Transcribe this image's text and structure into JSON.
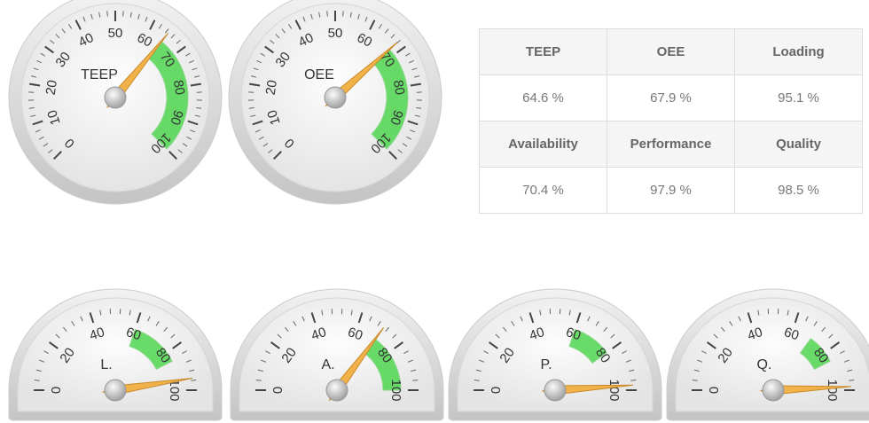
{
  "chart_data": [
    {
      "type": "gauge",
      "style": "round",
      "label": "TEEP",
      "value": 64.6,
      "lim": [
        0,
        100
      ],
      "ticks": [
        0,
        10,
        20,
        30,
        40,
        50,
        60,
        70,
        80,
        90,
        100
      ],
      "band": [
        65,
        100
      ],
      "band_color": "#3ad13a",
      "needle_color": "#f2b24a"
    },
    {
      "type": "gauge",
      "style": "round",
      "label": "OEE",
      "value": 67.9,
      "lim": [
        0,
        100
      ],
      "ticks": [
        0,
        10,
        20,
        30,
        40,
        50,
        60,
        70,
        80,
        90,
        100
      ],
      "band": [
        68,
        100
      ],
      "band_color": "#3ad13a",
      "needle_color": "#f2b24a"
    },
    {
      "type": "gauge",
      "style": "half",
      "label": "L.",
      "value": 95.1,
      "lim": [
        0,
        100
      ],
      "ticks": [
        0,
        20,
        40,
        60,
        80,
        100
      ],
      "band": [
        60,
        85
      ],
      "band_color": "#3ad13a",
      "needle_color": "#f2b24a"
    },
    {
      "type": "gauge",
      "style": "half",
      "label": "A.",
      "value": 70.4,
      "lim": [
        0,
        100
      ],
      "ticks": [
        0,
        20,
        40,
        60,
        80,
        100
      ],
      "band": [
        70,
        100
      ],
      "band_color": "#3ad13a",
      "needle_color": "#f2b24a"
    },
    {
      "type": "gauge",
      "style": "half",
      "label": "P.",
      "value": 97.9,
      "lim": [
        0,
        100
      ],
      "ticks": [
        0,
        20,
        40,
        60,
        80,
        100
      ],
      "band": [
        60,
        80
      ],
      "band_color": "#3ad13a",
      "needle_color": "#f2b24a"
    },
    {
      "type": "gauge",
      "style": "half",
      "label": "Q.",
      "value": 98.5,
      "lim": [
        0,
        100
      ],
      "ticks": [
        0,
        20,
        40,
        60,
        80,
        100
      ],
      "band": [
        70,
        85
      ],
      "band_color": "#3ad13a",
      "needle_color": "#f2b24a"
    }
  ],
  "table": {
    "rows": [
      [
        "TEEP",
        "OEE",
        "Loading"
      ],
      [
        "64.6 %",
        "67.9 %",
        "95.1 %"
      ],
      [
        "Availability",
        "Performance",
        "Quality"
      ],
      [
        "70.4 %",
        "97.9 %",
        "98.5 %"
      ]
    ]
  }
}
